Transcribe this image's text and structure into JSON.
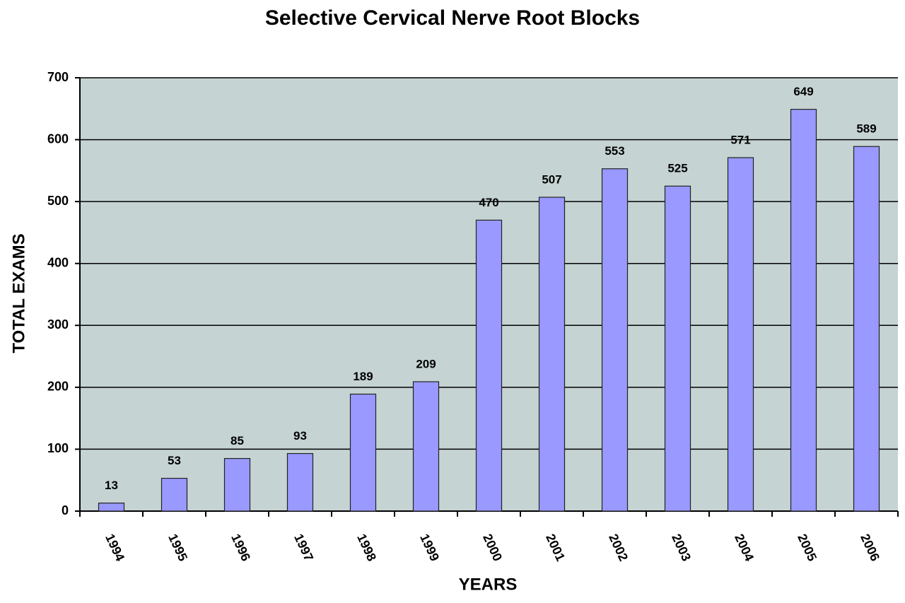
{
  "chart_data": {
    "type": "bar",
    "title": "Selective Cervical Nerve Root Blocks",
    "x_label": "YEARS",
    "y_label": "TOTAL EXAMS",
    "categories": [
      "1994",
      "1995",
      "1996",
      "1997",
      "1998",
      "1999",
      "2000",
      "2001",
      "2002",
      "2003",
      "2004",
      "2005",
      "2006"
    ],
    "values": [
      13,
      53,
      85,
      93,
      189,
      209,
      470,
      507,
      553,
      525,
      571,
      649,
      589
    ],
    "color": "#9999ff",
    "ylim": [
      0,
      700
    ],
    "yticks": [
      0,
      100,
      200,
      300,
      400,
      500,
      600,
      700
    ],
    "grid": true
  }
}
